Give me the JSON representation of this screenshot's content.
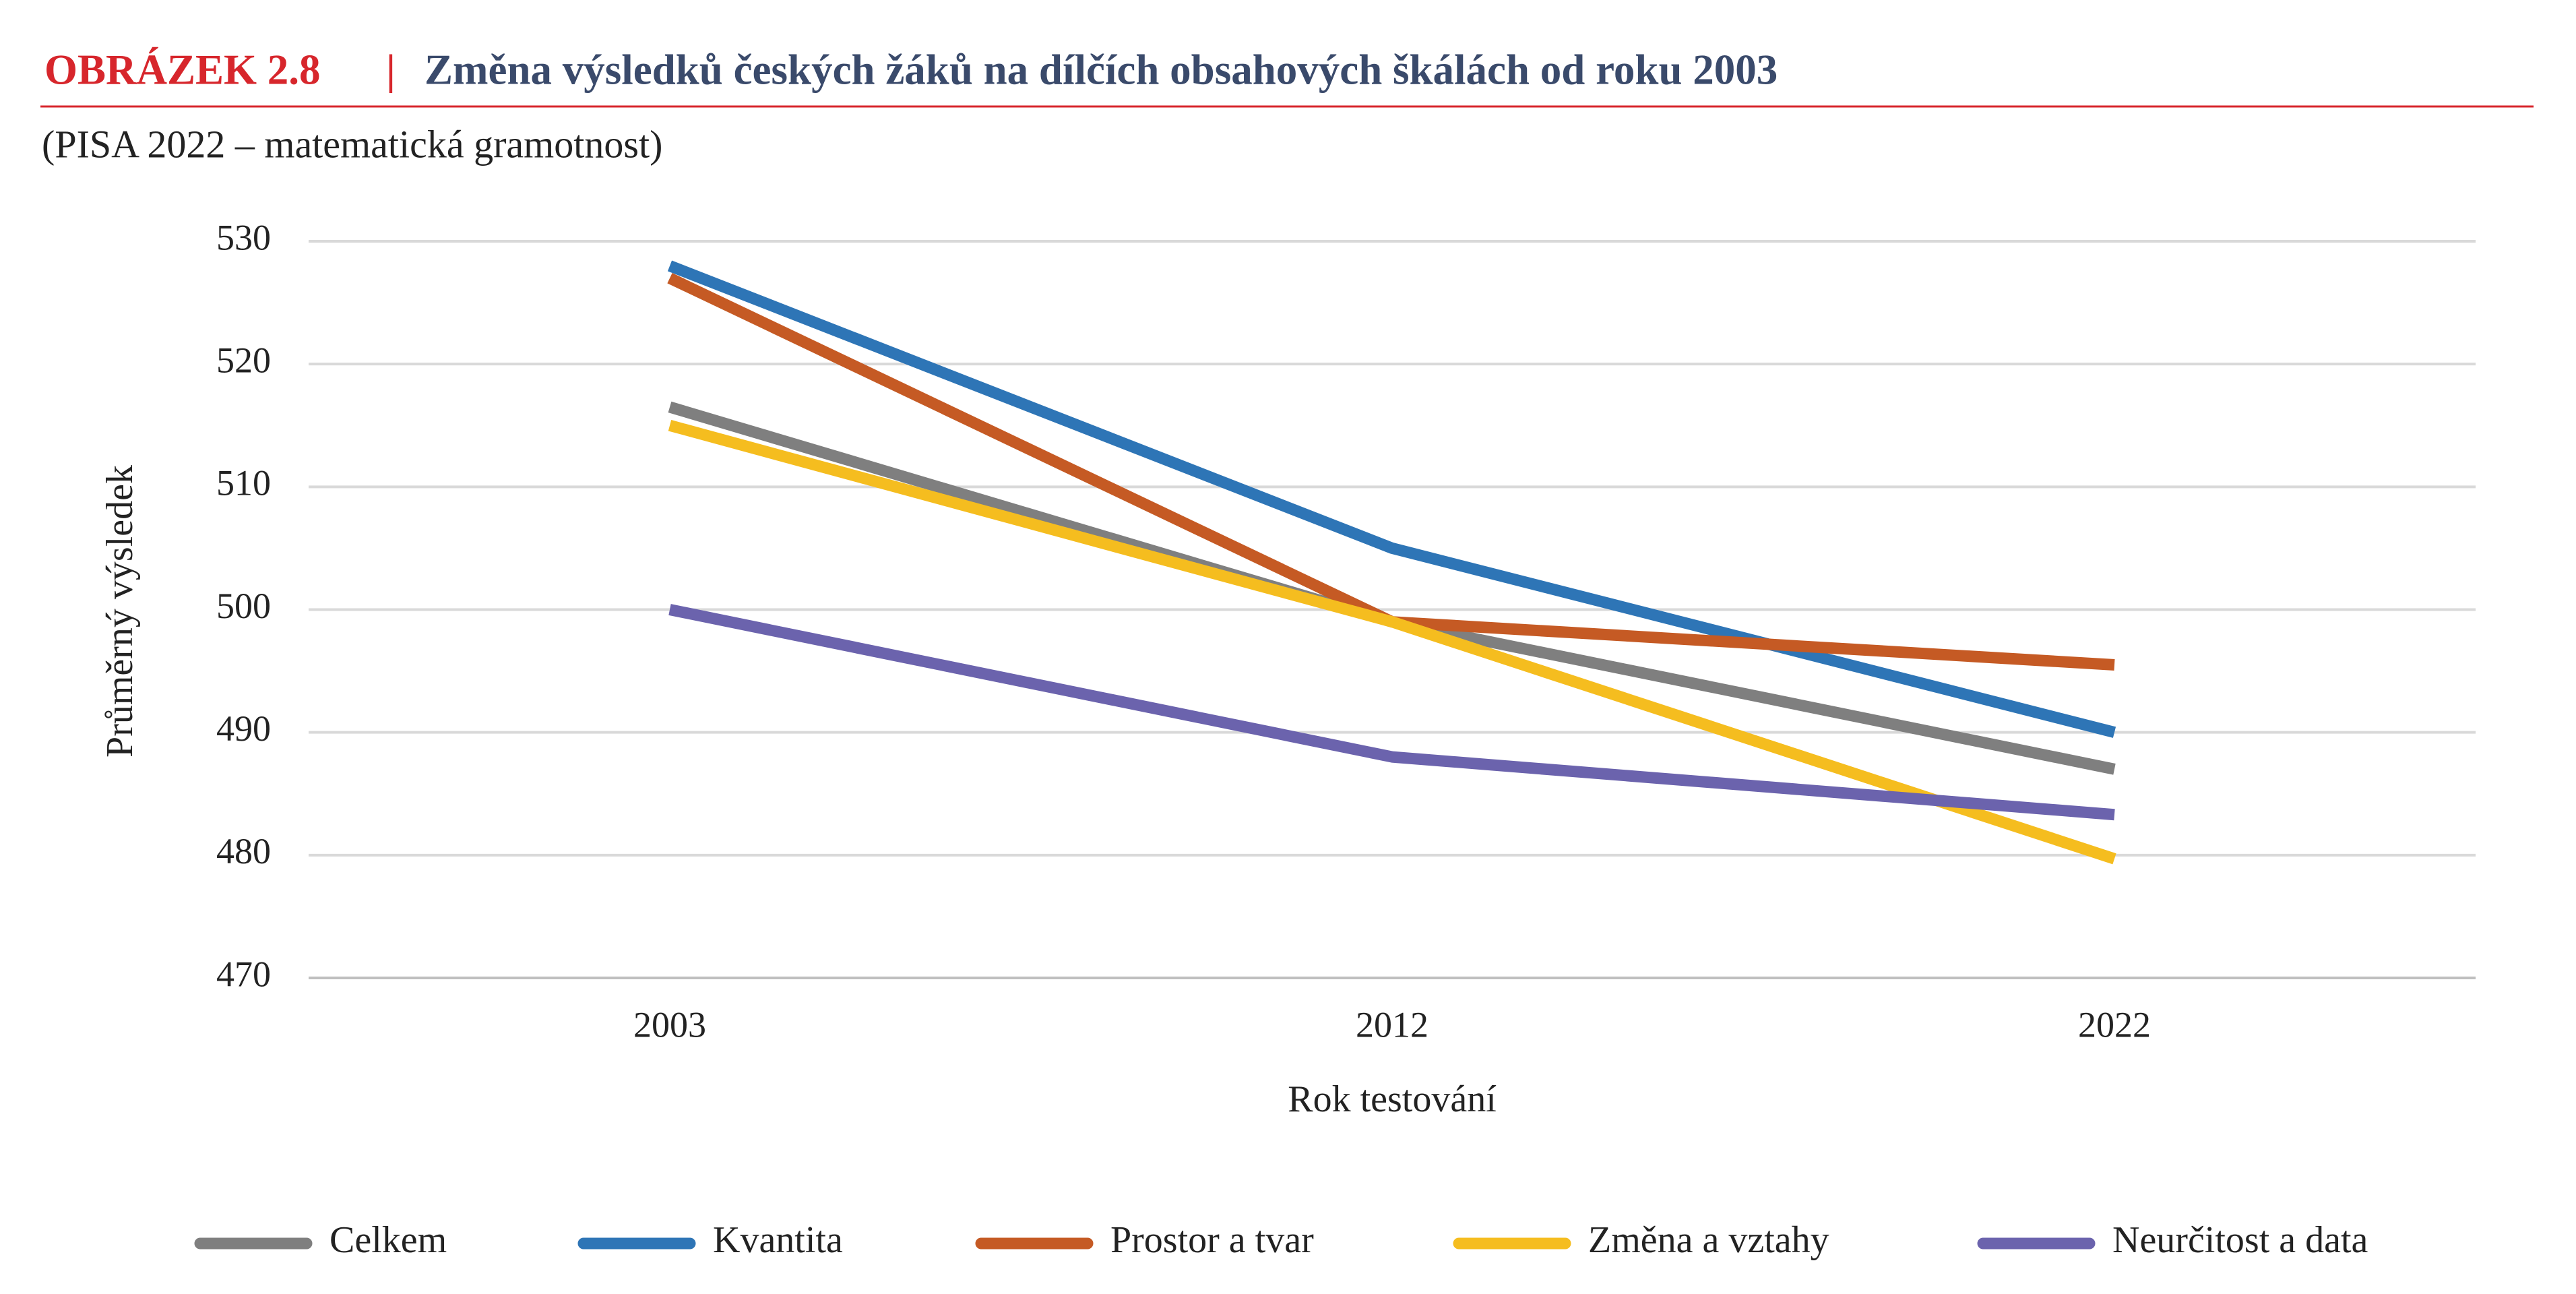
{
  "chart_data": {
    "type": "line",
    "label": "OBRÁZEK 2.8",
    "separator": "|",
    "title": "Změna výsledků českých žáků na dílčích obsahových škálách od roku 2003",
    "subtitle": "(PISA 2022 – matematická gramotnost)",
    "x_label": "Rok testování",
    "y_label": "Průměrný výsledek",
    "categories": [
      "2003",
      "2012",
      "2022"
    ],
    "series": [
      {
        "name": "Celkem",
        "color": "#7f7f7f",
        "values": [
          516.5,
          499,
          487
        ]
      },
      {
        "name": "Kvantita",
        "color": "#2e75b6",
        "values": [
          528,
          505,
          490
        ]
      },
      {
        "name": "Prostor a tvar",
        "color": "#c55a24",
        "values": [
          527,
          499,
          495.5
        ]
      },
      {
        "name": "Změna a vztahy",
        "color": "#f5bd1f",
        "values": [
          515,
          499,
          479.7
        ]
      },
      {
        "name": "Neurčitost a data",
        "color": "#6b63ad",
        "values": [
          500,
          488,
          483.3
        ]
      }
    ],
    "ylim": [
      470,
      530
    ],
    "yticks": [
      470,
      480,
      490,
      500,
      510,
      520,
      530
    ],
    "grid": true,
    "legend": "bottom"
  }
}
